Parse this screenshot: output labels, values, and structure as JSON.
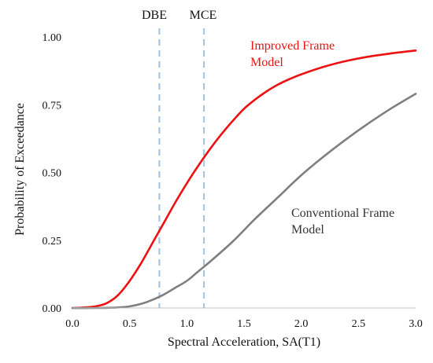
{
  "chart_data": {
    "type": "line",
    "xlabel": "Spectral Acceleration, SA(T1)",
    "ylabel": "Probability of Exceedance",
    "xlim": [
      0,
      3.0
    ],
    "ylim": [
      0,
      1.0
    ],
    "x_ticks": [
      "0.0",
      "0.5",
      "1.0",
      "1.5",
      "2.0",
      "2.5",
      "3.0"
    ],
    "x_tick_values": [
      0,
      0.5,
      1.0,
      1.5,
      2.0,
      2.5,
      3.0
    ],
    "y_ticks": [
      "0.00",
      "0.25",
      "0.50",
      "0.75",
      "1.00"
    ],
    "y_tick_values": [
      0,
      0.25,
      0.5,
      0.75,
      1.0
    ],
    "grid": false,
    "legend": "inline labels",
    "series": [
      {
        "label_lines": [
          "Improved Frame",
          "Model"
        ],
        "color": "#ee1111",
        "x": [
          0,
          0.1,
          0.2,
          0.3,
          0.4,
          0.5,
          0.6,
          0.7,
          0.8,
          0.9,
          1.0,
          1.1,
          1.2,
          1.3,
          1.4,
          1.5,
          1.6,
          1.7,
          1.8,
          1.9,
          2.0,
          2.2,
          2.4,
          2.6,
          2.8,
          3.0
        ],
        "values": [
          0.0,
          0.002,
          0.006,
          0.018,
          0.048,
          0.1,
          0.165,
          0.24,
          0.315,
          0.39,
          0.46,
          0.525,
          0.585,
          0.64,
          0.69,
          0.735,
          0.77,
          0.8,
          0.825,
          0.845,
          0.862,
          0.89,
          0.912,
          0.928,
          0.94,
          0.95
        ]
      },
      {
        "label_lines": [
          "Conventional Frame",
          "Model"
        ],
        "color": "#7f7f7f",
        "x": [
          0,
          0.2,
          0.4,
          0.5,
          0.6,
          0.7,
          0.8,
          0.9,
          1.0,
          1.1,
          1.2,
          1.4,
          1.6,
          1.8,
          2.0,
          2.2,
          2.4,
          2.6,
          2.8,
          3.0
        ],
        "values": [
          0.0,
          0.0,
          0.002,
          0.006,
          0.015,
          0.03,
          0.05,
          0.075,
          0.1,
          0.135,
          0.17,
          0.245,
          0.33,
          0.41,
          0.49,
          0.56,
          0.625,
          0.685,
          0.74,
          0.79
        ]
      }
    ],
    "reference_lines": [
      {
        "label": "DBE",
        "x": 0.76,
        "color": "#9dc3e6"
      },
      {
        "label": "MCE",
        "x": 1.15,
        "color": "#9dc3e6"
      }
    ]
  }
}
